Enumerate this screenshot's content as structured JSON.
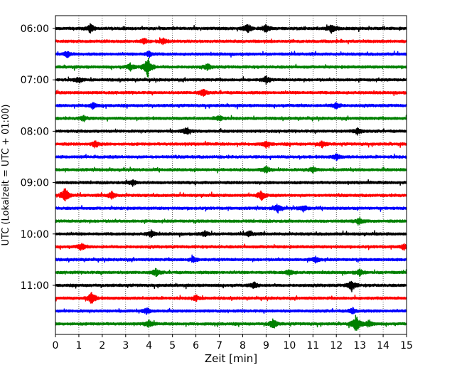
{
  "chart_data": {
    "type": "line",
    "title": "",
    "xlabel": "Zeit  [min]",
    "ylabel": "UTC (Lokalzeit = UTC + 01:00)",
    "xlim": [
      0,
      15
    ],
    "x_ticks": [
      0,
      1,
      2,
      3,
      4,
      5,
      6,
      7,
      8,
      9,
      10,
      11,
      12,
      13,
      14,
      15
    ],
    "x_tick_labels": [
      "0",
      "1",
      "2",
      "3",
      "4",
      "5",
      "6",
      "7",
      "8",
      "9",
      "10",
      "11",
      "12",
      "13",
      "14",
      "15"
    ],
    "y_tick_labels": [
      "06:00",
      "07:00",
      "08:00",
      "09:00",
      "10:00",
      "11:00"
    ],
    "trace_colors": [
      "#000000",
      "#ff0000",
      "#0000ff",
      "#008000"
    ],
    "grid": "vertical dotted",
    "traces": [
      {
        "start": "06:00",
        "events": [
          [
            1.5,
            6
          ],
          [
            8.2,
            7
          ],
          [
            9.0,
            5
          ],
          [
            11.8,
            6
          ]
        ]
      },
      {
        "start": "06:15",
        "events": [
          [
            3.8,
            4
          ],
          [
            4.6,
            4
          ]
        ]
      },
      {
        "start": "06:30",
        "events": [
          [
            0.5,
            4
          ],
          [
            4.0,
            4
          ]
        ]
      },
      {
        "start": "06:45",
        "events": [
          [
            3.95,
            16
          ],
          [
            3.2,
            5
          ],
          [
            6.5,
            4
          ]
        ]
      },
      {
        "start": "07:00",
        "events": [
          [
            1.0,
            4
          ],
          [
            9.0,
            5
          ]
        ]
      },
      {
        "start": "07:15",
        "events": [
          [
            6.3,
            5
          ]
        ]
      },
      {
        "start": "07:30",
        "events": [
          [
            1.6,
            4
          ],
          [
            12.0,
            5
          ]
        ]
      },
      {
        "start": "07:45",
        "events": [
          [
            1.2,
            4
          ],
          [
            7.0,
            4
          ]
        ]
      },
      {
        "start": "08:00",
        "events": [
          [
            5.6,
            5
          ],
          [
            12.9,
            5
          ]
        ]
      },
      {
        "start": "08:15",
        "events": [
          [
            1.7,
            5
          ],
          [
            9.0,
            4
          ],
          [
            11.4,
            4
          ]
        ]
      },
      {
        "start": "08:30",
        "events": [
          [
            12.0,
            4
          ]
        ]
      },
      {
        "start": "08:45",
        "events": [
          [
            9.0,
            5
          ],
          [
            11.0,
            4
          ]
        ]
      },
      {
        "start": "09:00",
        "events": [
          [
            3.3,
            4
          ]
        ]
      },
      {
        "start": "09:15",
        "events": [
          [
            0.4,
            12
          ],
          [
            2.4,
            5
          ],
          [
            8.8,
            7
          ]
        ]
      },
      {
        "start": "09:30",
        "events": [
          [
            9.5,
            6
          ],
          [
            10.6,
            4
          ]
        ]
      },
      {
        "start": "09:45",
        "events": [
          [
            13.0,
            5
          ]
        ]
      },
      {
        "start": "10:00",
        "events": [
          [
            4.1,
            5
          ],
          [
            6.4,
            4
          ],
          [
            8.3,
            4
          ]
        ]
      },
      {
        "start": "10:15",
        "events": [
          [
            1.1,
            5
          ],
          [
            14.9,
            4
          ]
        ]
      },
      {
        "start": "10:30",
        "events": [
          [
            5.9,
            4
          ],
          [
            11.1,
            4
          ]
        ]
      },
      {
        "start": "10:45",
        "events": [
          [
            4.3,
            5
          ],
          [
            10.0,
            4
          ],
          [
            13.0,
            4
          ]
        ]
      },
      {
        "start": "11:00",
        "events": [
          [
            12.65,
            8
          ],
          [
            8.5,
            4
          ]
        ]
      },
      {
        "start": "11:15",
        "events": [
          [
            1.55,
            9
          ],
          [
            6.0,
            4
          ]
        ]
      },
      {
        "start": "11:30",
        "events": [
          [
            3.9,
            4
          ],
          [
            12.7,
            4
          ]
        ]
      },
      {
        "start": "11:45",
        "events": [
          [
            9.3,
            7
          ],
          [
            12.85,
            13
          ],
          [
            13.4,
            5
          ],
          [
            4.0,
            5
          ]
        ]
      }
    ]
  }
}
